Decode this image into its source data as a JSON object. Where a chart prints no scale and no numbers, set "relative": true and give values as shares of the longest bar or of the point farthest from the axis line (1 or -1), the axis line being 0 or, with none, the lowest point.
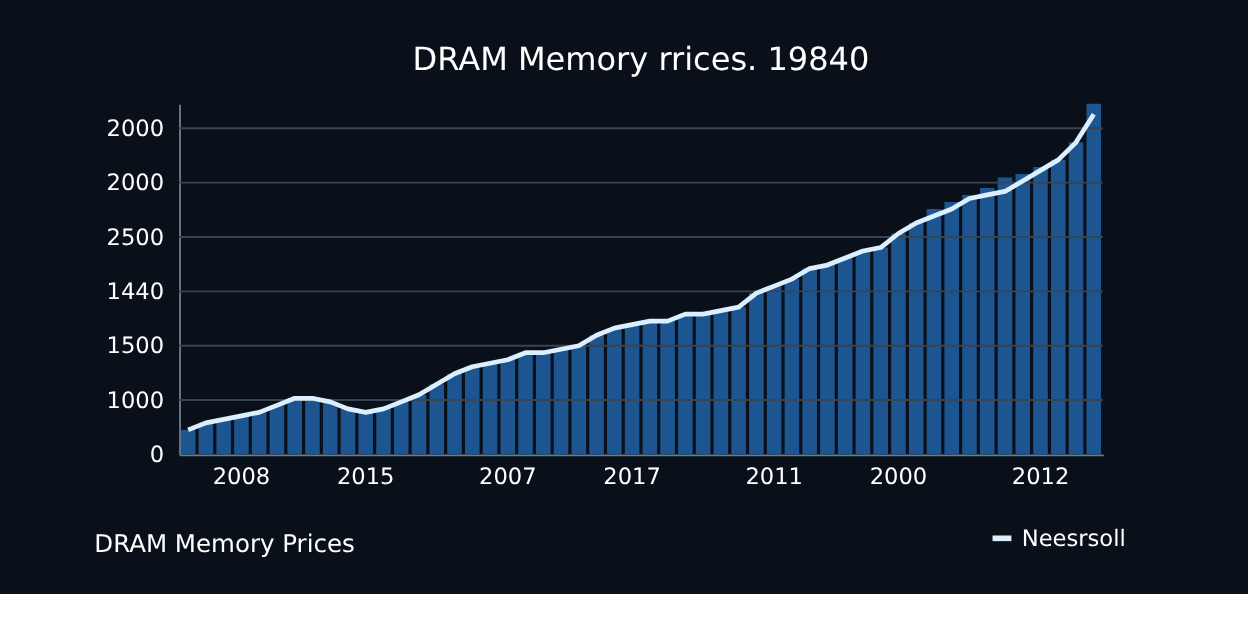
{
  "chart_data": {
    "type": "bar",
    "title": "DRAM Memory rrices. 19840",
    "categories": [
      null,
      null,
      null,
      "2008",
      null,
      null,
      null,
      null,
      null,
      null,
      "2015",
      null,
      null,
      null,
      null,
      null,
      null,
      null,
      "2007",
      null,
      null,
      null,
      null,
      null,
      null,
      "2017",
      null,
      null,
      null,
      null,
      null,
      null,
      null,
      "2011",
      null,
      null,
      null,
      null,
      null,
      null,
      "2000",
      null,
      null,
      null,
      null,
      null,
      null,
      null,
      "2012",
      null,
      null,
      null
    ],
    "relative": true,
    "series": [
      {
        "color": "#1c5590",
        "values": [
          0.07,
          0.09,
          0.1,
          0.11,
          0.12,
          0.14,
          0.16,
          0.16,
          0.15,
          0.13,
          0.12,
          0.13,
          0.15,
          0.17,
          0.2,
          0.23,
          0.25,
          0.26,
          0.27,
          0.29,
          0.29,
          0.3,
          0.31,
          0.34,
          0.36,
          0.37,
          0.38,
          0.38,
          0.4,
          0.4,
          0.41,
          0.42,
          0.46,
          0.48,
          0.5,
          0.53,
          0.54,
          0.56,
          0.58,
          0.59,
          0.63,
          0.66,
          0.7,
          0.72,
          0.74,
          0.76,
          0.79,
          0.8,
          0.82,
          0.84,
          0.89,
          1
        ]
      },
      {
        "type": "line",
        "name": "Neesrsoll",
        "color": "#dcefff",
        "values": [
          0.07,
          0.09,
          0.1,
          0.11,
          0.12,
          0.14,
          0.16,
          0.16,
          0.15,
          0.13,
          0.12,
          0.13,
          0.15,
          0.17,
          0.2,
          0.23,
          0.25,
          0.26,
          0.27,
          0.29,
          0.29,
          0.3,
          0.31,
          0.34,
          0.36,
          0.37,
          0.38,
          0.38,
          0.4,
          0.4,
          0.41,
          0.42,
          0.46,
          0.48,
          0.5,
          0.53,
          0.54,
          0.56,
          0.58,
          0.59,
          0.63,
          0.66,
          0.68,
          0.7,
          0.73,
          0.74,
          0.75,
          0.78,
          0.81,
          0.84,
          0.89,
          0.97
        ]
      }
    ],
    "grid": "y",
    "legend": "bottom right",
    "annotations": [
      "DRAM Memory Prices",
      "0",
      "1000",
      "1500",
      "1440",
      "2500",
      "2000",
      "2000"
    ]
  }
}
